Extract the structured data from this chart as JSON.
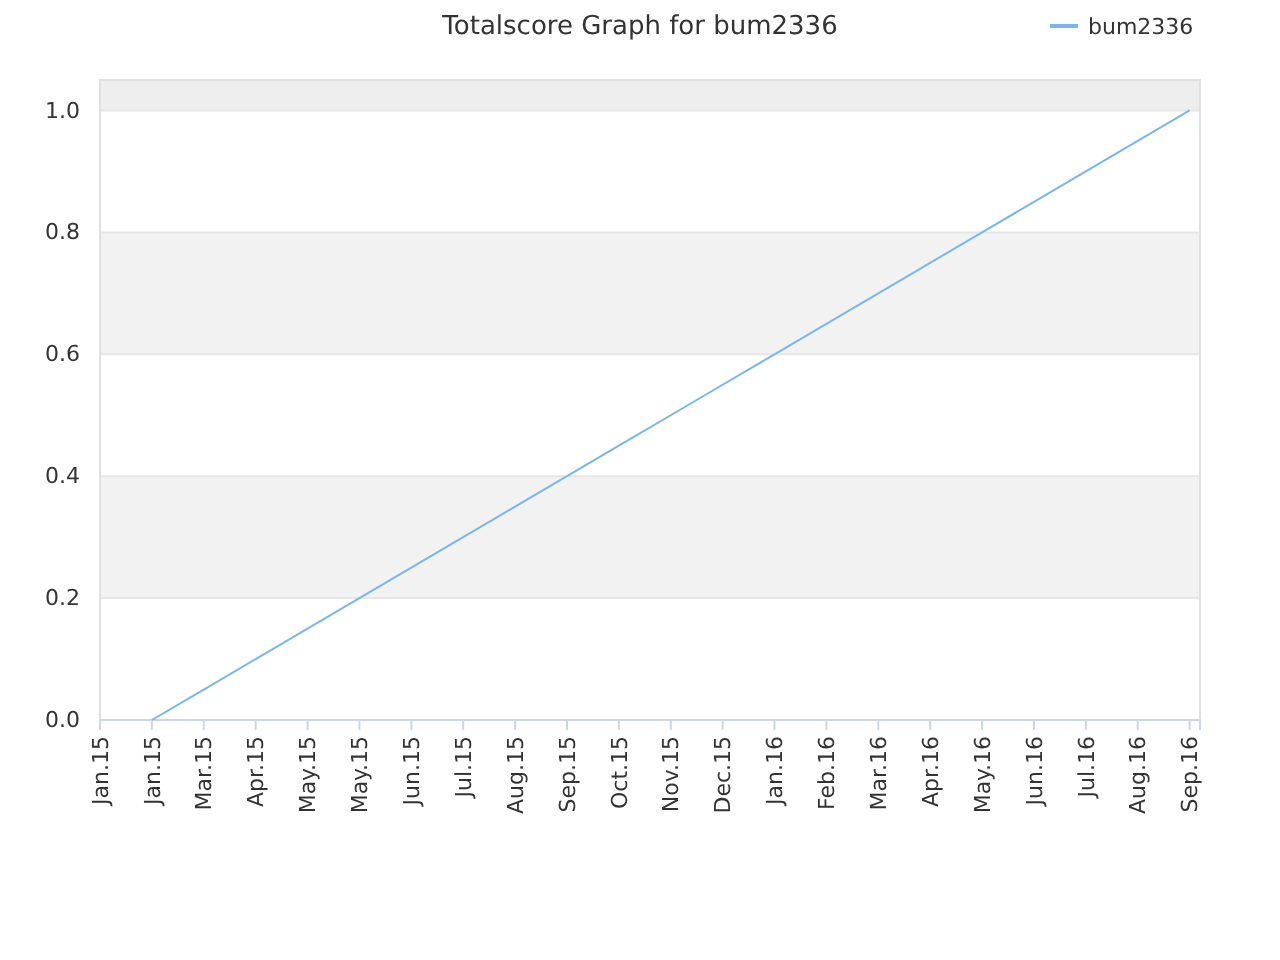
{
  "chart_data": {
    "type": "line",
    "title": "Totalscore Graph for bum2336",
    "categories": [
      "Jan.15",
      "Jan.15",
      "Mar.15",
      "Apr.15",
      "May.15",
      "May.15",
      "Jun.15",
      "Jul.15",
      "Aug.15",
      "Sep.15",
      "Oct.15",
      "Nov.15",
      "Dec.15",
      "Jan.16",
      "Feb.16",
      "Mar.16",
      "Apr.16",
      "May.16",
      "Jun.16",
      "Jul.16",
      "Aug.16",
      "Sep.16"
    ],
    "ylim": [
      0,
      1.05
    ],
    "yticks": [
      {
        "value": 0,
        "label": "0.0"
      },
      {
        "value": 0.2,
        "label": "0.2"
      },
      {
        "value": 0.4,
        "label": "0.4"
      },
      {
        "value": 0.6,
        "label": "0.6"
      },
      {
        "value": 0.8,
        "label": "0.8"
      },
      {
        "value": 1,
        "label": "1.0"
      }
    ],
    "grid": "y",
    "legend": "top right",
    "marker": "none",
    "line_style": "solid",
    "bands": [
      {
        "axis": "y",
        "from": 0.2,
        "to": 0.4,
        "color": "#f2f2f2"
      },
      {
        "axis": "y",
        "from": 0.6,
        "to": 0.8,
        "color": "#f2f2f2"
      },
      {
        "axis": "y",
        "from": 1.0,
        "to": 1.05,
        "color": "#eeeeee"
      }
    ],
    "series": [
      {
        "name": "bum2336",
        "color": "#7cb5ec",
        "values": [
          null,
          0,
          0.05,
          0.1,
          0.15,
          0.2,
          0.25,
          0.3,
          0.35,
          0.4,
          0.45,
          0.5,
          0.55,
          0.6,
          0.65,
          0.7,
          0.75,
          0.8,
          0.85,
          0.9,
          0.95,
          1
        ]
      }
    ]
  }
}
